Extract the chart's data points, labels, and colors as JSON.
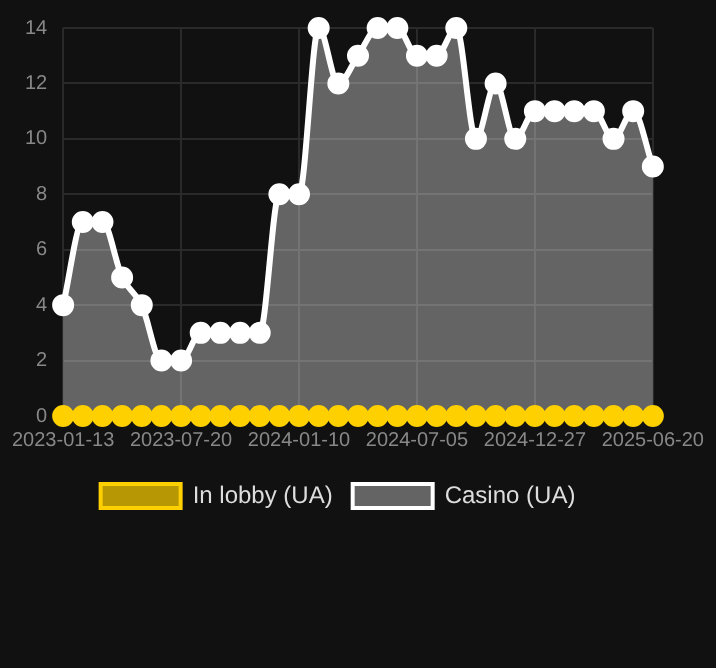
{
  "chart_data": {
    "type": "line",
    "categories": [
      "2023-01-13",
      null,
      null,
      null,
      null,
      null,
      "2023-07-20",
      null,
      null,
      null,
      null,
      null,
      "2024-01-10",
      null,
      null,
      null,
      null,
      null,
      "2024-07-05",
      null,
      null,
      null,
      null,
      null,
      "2024-12-27",
      null,
      null,
      null,
      null,
      null,
      "2025-06-20"
    ],
    "series": [
      {
        "name": "In lobby (UA)",
        "type": "line",
        "color": "#ffd000",
        "values": [
          0,
          0,
          0,
          0,
          0,
          0,
          0,
          0,
          0,
          0,
          0,
          0,
          0,
          0,
          0,
          0,
          0,
          0,
          0,
          0,
          0,
          0,
          0,
          0,
          0,
          0,
          0,
          0,
          0,
          0,
          0
        ]
      },
      {
        "name": "Casino (UA)",
        "type": "area",
        "color": "#ffffff",
        "values": [
          4,
          7,
          7,
          5,
          4,
          2,
          2,
          3,
          3,
          3,
          3,
          8,
          8,
          14,
          12,
          13,
          14,
          14,
          13,
          13,
          14,
          10,
          12,
          10,
          11,
          11,
          11,
          11,
          10,
          11,
          9
        ]
      }
    ],
    "ylim": [
      0,
      14
    ],
    "yticks": [
      0,
      2,
      4,
      6,
      8,
      10,
      12,
      14
    ],
    "grid": true,
    "legend": "bottom",
    "marker": "circle"
  }
}
